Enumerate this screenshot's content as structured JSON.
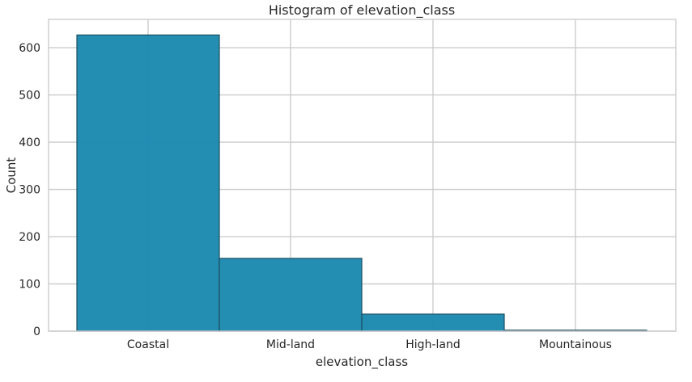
{
  "chart_data": {
    "type": "bar",
    "title": "Histogram of elevation_class",
    "xlabel": "elevation_class",
    "ylabel": "Count",
    "categories": [
      "Coastal",
      "Mid-land",
      "High-land",
      "Mountainous"
    ],
    "values": [
      627,
      154,
      36,
      2
    ],
    "ylim": [
      0,
      660
    ],
    "yticks": [
      0,
      100,
      200,
      300,
      400,
      500,
      600
    ],
    "grid": true,
    "legend": "none",
    "colors": {
      "bar": "#1f8bb0",
      "bar_edge": "#1c4f63",
      "grid": "#cccccc",
      "text": "#262626"
    }
  }
}
